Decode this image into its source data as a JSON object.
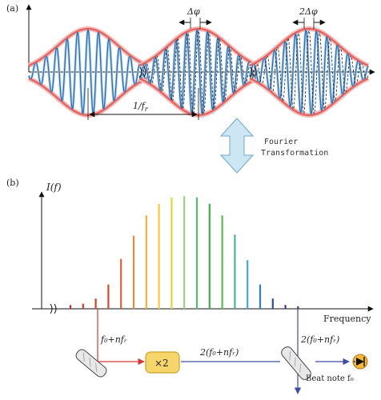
{
  "panel_a": {
    "label": "(a)",
    "delta_phi": "Δφ",
    "two_delta_phi": "2Δφ",
    "period_label": "1/f",
    "period_subscript": "r",
    "pulse_phase_offsets_rad": [
      0,
      0.9,
      1.8
    ],
    "colors": {
      "envelope": "#e2605f",
      "envelope_glow": "#f7b9b3",
      "carrier": "#2a6fb0",
      "carrier_light": "#b8d3ec"
    }
  },
  "transform": {
    "line1": "Fourier",
    "line2": "Transformation",
    "arrow_color": "#cde6f4",
    "arrow_stroke": "#6fa7c8"
  },
  "panel_b": {
    "label": "(b)",
    "y_label": "I(f)",
    "x_label": "Frequency",
    "comb_relative_heights": [
      0.03,
      0.04,
      0.08,
      0.19,
      0.39,
      0.57,
      0.73,
      0.82,
      0.87,
      0.88,
      0.87,
      0.82,
      0.73,
      0.58,
      0.38,
      0.19,
      0.08,
      0.03,
      0.02
    ],
    "comb_colors": [
      "#c0304a",
      "#c8402f",
      "#d2422a",
      "#d84830",
      "#e0603a",
      "#ee8a3e",
      "#f2b03c",
      "#f3cd38",
      "#d9dc3c",
      "#9cd07c",
      "#58bd68",
      "#3aaf48",
      "#5cbc52",
      "#46b39a",
      "#3fa9d8",
      "#2f7ec8",
      "#2d4f9e",
      "#473497",
      "#5e2f86"
    ],
    "selected_line_label": "f₀+nfᵣ",
    "doubler_label": "×2",
    "doubled_label": "2(f₀+nfᵣ)",
    "doubled_label_right": "2(f₀+nfᵣ)",
    "beat_note_label": "Beat note f₀",
    "colors": {
      "selected_path": "#d23a3a",
      "doubled_path": "#3c4ea0",
      "doubler_fill": "#f6d56b",
      "doubler_stroke": "#c9a226"
    }
  }
}
